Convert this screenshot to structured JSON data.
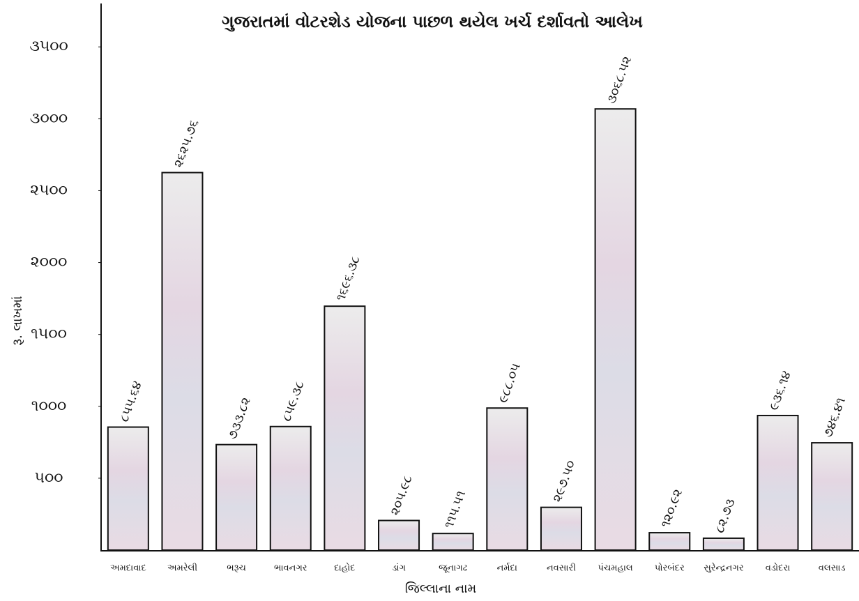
{
  "chart_data": {
    "type": "bar",
    "title": "ગુજરાતમાં વોટરશેડ યોજના પાછળ થયેલ ખર્ચ દર્શાવતો આલેખ",
    "y_label": "રૂ. લાખમાં",
    "x_label": "જિલ્લાના નામ",
    "categories": [
      "અમદાવાદ",
      "અમરેલી",
      "ભરૂચ",
      "ભાવનગર",
      "દાહોદ",
      "ડાંગ",
      "જૂનાગઢ",
      "નર્મદા",
      "નવસારી",
      "પંચમહાલ",
      "પોરબંદર",
      "સુરેન્દ્રનગર",
      "વડોદરા",
      "વલસાડ"
    ],
    "values": [
      855.64,
      2625.76,
      733.82,
      859.38,
      1696.38,
      205.98,
      115.51,
      988.05,
      297.5,
      3068.52,
      120.92,
      82.73,
      936.14,
      746.41
    ],
    "value_labels": [
      "૮૫૫.૬૪",
      "૨૬૨૫.૭૬",
      "૭૩૩.૮૨",
      "૮૫૯.૩૮",
      "૧૬૯૬.૩૮",
      "૨૦૫.૯૮",
      "૧૧૫.૫૧",
      "૯૮૮.૦૫",
      "૨૯૭.૫૦",
      "૩૦૬૮.૫૨",
      "૧૨૦.૯૨",
      "૮૨.૭૩",
      "૯૩૬.૧૪",
      "૭૪૬.૪૧"
    ],
    "color": "#e8dde4",
    "ylim": [
      0,
      3700
    ],
    "yticks": [
      {
        "value": 500,
        "label": "૫૦૦"
      },
      {
        "value": 1000,
        "label": "૧૦૦૦"
      },
      {
        "value": 1500,
        "label": "૧૫૦૦"
      },
      {
        "value": 2000,
        "label": "૨૦૦૦"
      },
      {
        "value": 2500,
        "label": "૨૫૦૦"
      },
      {
        "value": 3000,
        "label": "૩૦૦૦"
      },
      {
        "value": 3500,
        "label": "૩૫૦૦"
      }
    ],
    "grid": false
  }
}
